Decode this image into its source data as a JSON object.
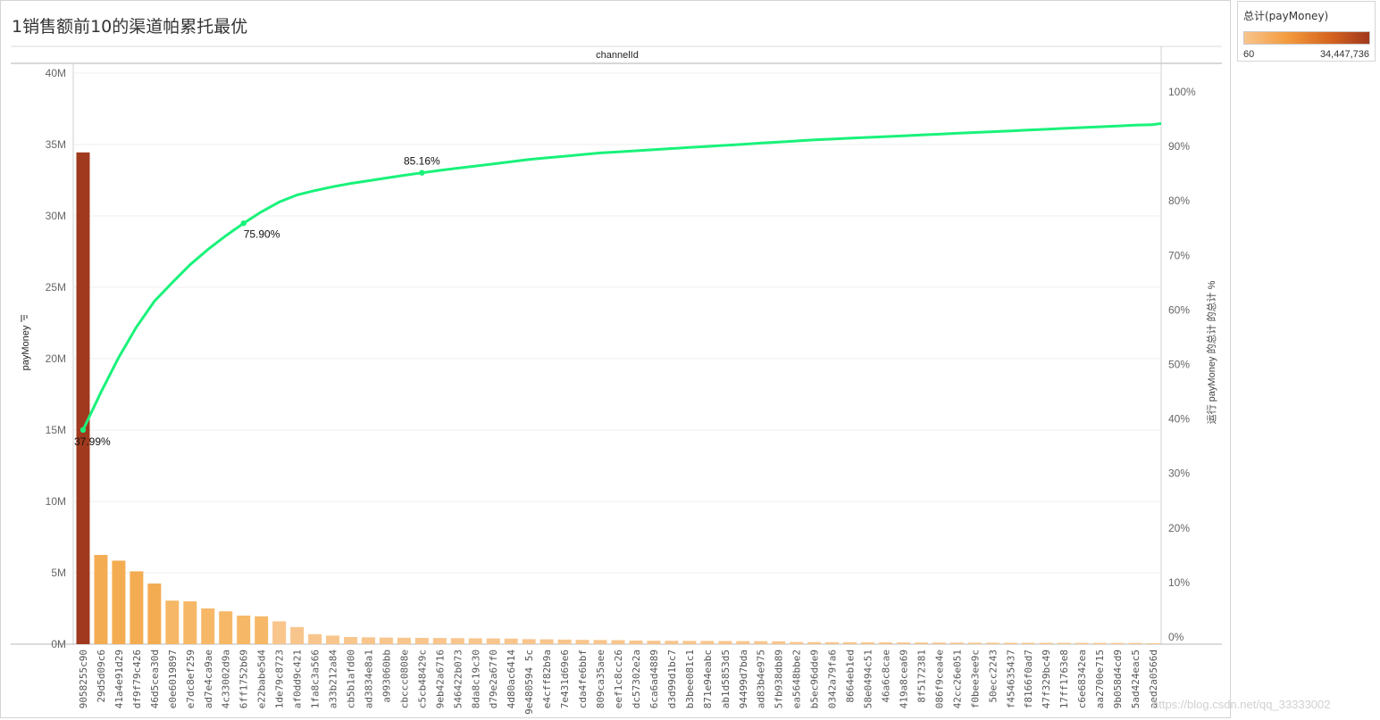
{
  "title": "1销售额前10的渠道帕累托最优",
  "legend": {
    "title": "总计(payMoney)",
    "min_label": "60",
    "max_label": "34,447,736",
    "colors": [
      "#f8c58c",
      "#f39a3d",
      "#d4621e",
      "#a0391d"
    ]
  },
  "watermark": "https://blog.csdn.net/qq_33333002",
  "chart_data": {
    "type": "bar+line",
    "column_header": "channelId",
    "ylabel_left": "payMoney",
    "ylabel_right": "运行 payMoney 的总计 的总计 %",
    "ylim_left": [
      0,
      40000000
    ],
    "yticks_left": [
      "0M",
      "5M",
      "10M",
      "15M",
      "20M",
      "25M",
      "30M",
      "35M",
      "40M"
    ],
    "ylim_right": [
      0,
      100
    ],
    "yticks_right": [
      "0%",
      "10%",
      "20%",
      "30%",
      "40%",
      "50%",
      "60%",
      "70%",
      "80%",
      "90%",
      "100%"
    ],
    "line_color": "#19f27a",
    "categories": [
      "9058255c90",
      "29d5d09c6",
      "41a4e91d29",
      "df9f79c426",
      "46d5cea30d",
      "e0e6019897",
      "e7dc8ef259",
      "ad7e4ca9ae",
      "4c33002d9a",
      "6ff1752b69",
      "e22babe5d4",
      "1de79c8723",
      "af0dd9c421",
      "1fa8c3a566",
      "a33b212a84",
      "cb5b1afd00",
      "ad3834e8a1",
      "a993060bb",
      "cbccc0808e",
      "c5cb48429c",
      "9eb42a6716",
      "546422b073",
      "8da8c19c30",
      "d79e2a67f0",
      "4d80ac6414",
      "9e480594 5c",
      "e4cff82b9a",
      "7e431d69e6",
      "cda4fe6bbf",
      "809ca35aee",
      "eef1c8cc26",
      "dc57302e2a",
      "6ca6ad4889",
      "d3d99d1bc7",
      "b3bee081c1",
      "871e94eabc",
      "ab1d5853d5",
      "94499d7bda",
      "ad83b4e975",
      "5fb938db89",
      "ea5648bbe2",
      "b5ec96dde9",
      "0342a79fa6",
      "8664eb1ed",
      "58e0494c51",
      "46a6c8cae",
      "419a8cea69",
      "8f5172381",
      "086f9cea4e",
      "42cc26e051",
      "f0bee3ee9c",
      "50ecc2243",
      "f454635437",
      "f8166f0ad7",
      "47f329bc49",
      "17ff1763e8",
      "c6e68342ea",
      "aa2700e715",
      "9b058d4cd9",
      "5ad424eac5",
      "aed2a0566d"
    ],
    "values": [
      34447736,
      6250000,
      5850000,
      5100000,
      4250000,
      3050000,
      3000000,
      2500000,
      2300000,
      2000000,
      1950000,
      1600000,
      1200000,
      700000,
      600000,
      500000,
      480000,
      460000,
      450000,
      440000,
      430000,
      420000,
      410000,
      400000,
      390000,
      350000,
      340000,
      320000,
      300000,
      290000,
      280000,
      250000,
      240000,
      235000,
      230000,
      225000,
      220000,
      215000,
      210000,
      200000,
      150000,
      145000,
      140000,
      135000,
      130000,
      125000,
      120000,
      115000,
      110000,
      105000,
      100000,
      98000,
      96000,
      94000,
      92000,
      90000,
      88000,
      86000,
      84000,
      82000,
      60
    ],
    "cumulative_pct": [
      37.99,
      44.9,
      51.3,
      56.9,
      61.6,
      65.0,
      68.3,
      71.1,
      73.6,
      75.9,
      78.0,
      79.8,
      81.1,
      81.9,
      82.6,
      83.2,
      83.7,
      84.2,
      84.7,
      85.16,
      85.6,
      86.0,
      86.4,
      86.8,
      87.2,
      87.6,
      87.9,
      88.2,
      88.5,
      88.8,
      89.0,
      89.2,
      89.4,
      89.6,
      89.8,
      90.0,
      90.2,
      90.4,
      90.6,
      90.8,
      91.0,
      91.2,
      91.35,
      91.5,
      91.65,
      91.8,
      91.95,
      92.1,
      92.25,
      92.4,
      92.55,
      92.7,
      92.85,
      93.0,
      93.15,
      93.3,
      93.45,
      93.6,
      93.75,
      93.9,
      94.0
    ],
    "annotations": [
      {
        "index": 0,
        "label": "37.99%"
      },
      {
        "index": 9,
        "label": "75.90%"
      },
      {
        "index": 19,
        "label": "85.16%"
      }
    ]
  }
}
